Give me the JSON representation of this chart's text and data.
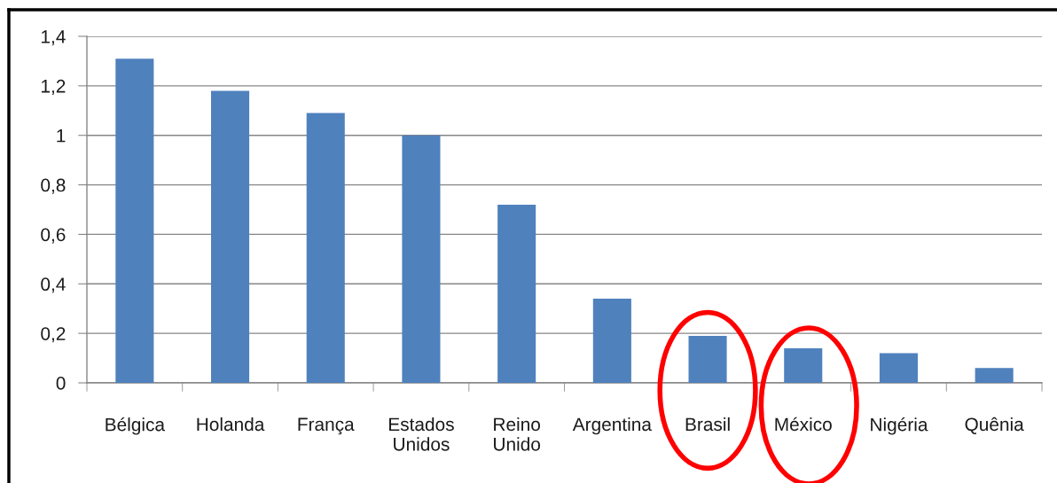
{
  "chart_data": {
    "type": "bar",
    "categories": [
      "Bélgica",
      "Holanda",
      "França",
      "Estados\nUnidos",
      "Reino\nUnido",
      "Argentina",
      "Brasil",
      "México",
      "Nigéria",
      "Quênia"
    ],
    "values": [
      1.31,
      1.18,
      1.09,
      1.0,
      0.72,
      0.34,
      0.19,
      0.14,
      0.12,
      0.06
    ],
    "color": "#4f81bd",
    "ylim": [
      0,
      1.4
    ],
    "yticks": [
      0,
      {
        "value": 0.2,
        "label": "0,2"
      },
      {
        "value": 0.4,
        "label": "0,4"
      },
      {
        "value": 0.6,
        "label": "0,6"
      },
      {
        "value": 0.8,
        "label": "0,8"
      },
      1,
      {
        "value": 1.2,
        "label": "1,2"
      },
      {
        "value": 1.4,
        "label": "1,4"
      }
    ],
    "grid": "y",
    "legend": false
  }
}
